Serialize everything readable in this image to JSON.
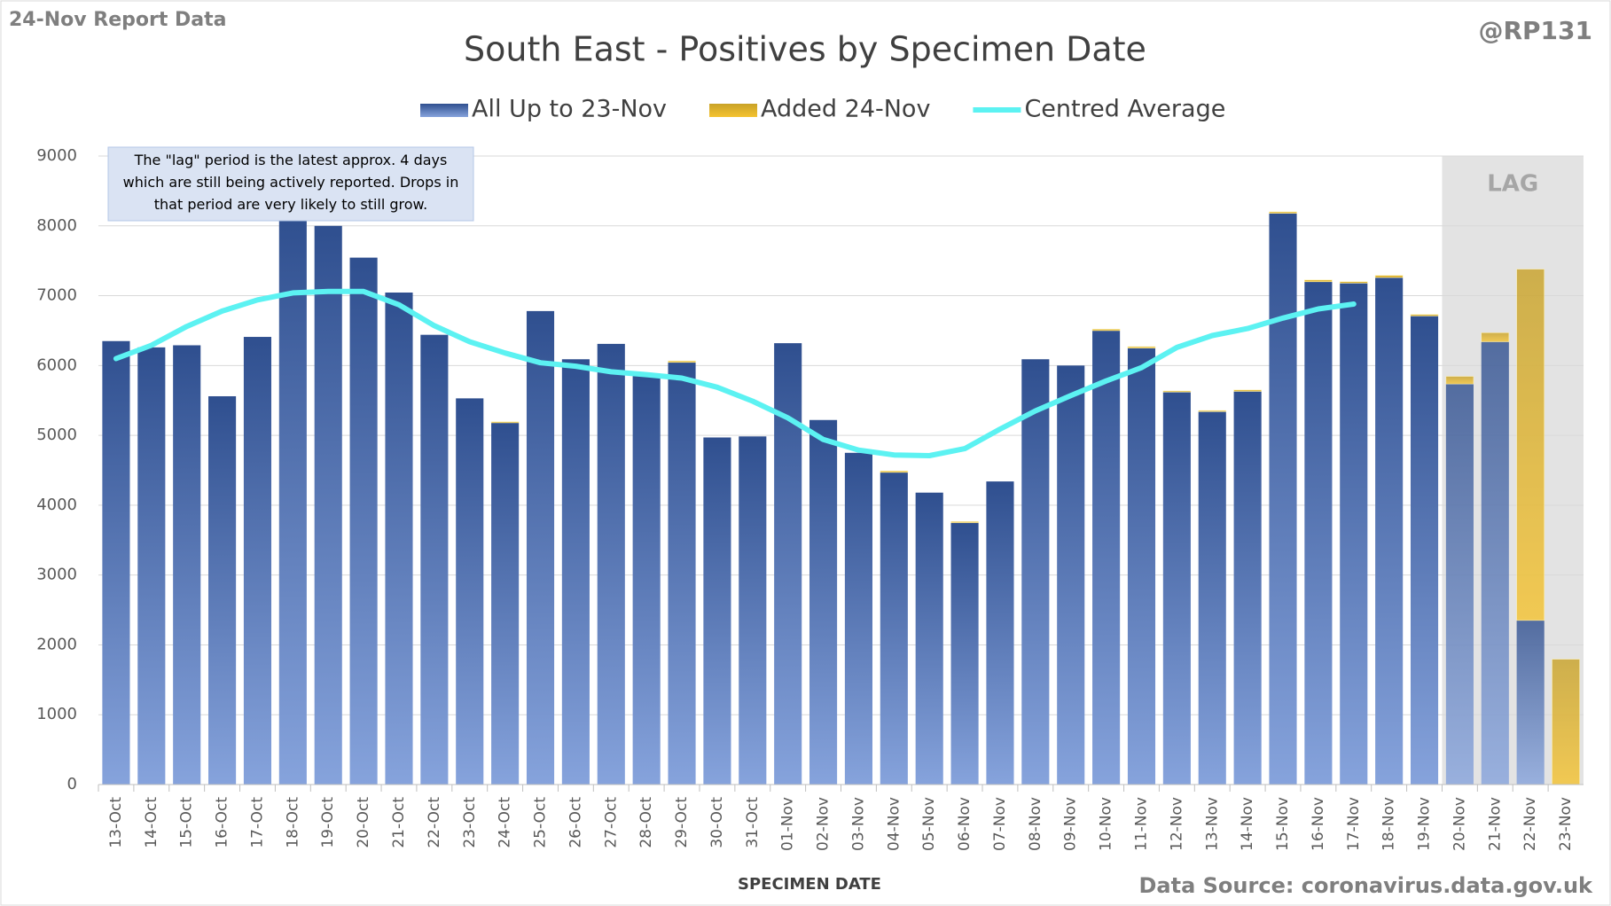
{
  "report_label": "24-Nov Report Data",
  "handle": "@RP131",
  "source": "Data Source: coronavirus.data.gov.uk",
  "chart_data": {
    "type": "bar",
    "stacked": true,
    "title": "South East - Positives by Specimen Date",
    "x_label": "SPECIMEN DATE",
    "annotation": "The \"lag\" period is the latest approx. 4 days which are still being actively reported.  Drops in that period are very likely to still grow.",
    "lag_label": "LAG",
    "categories": [
      "13-Oct",
      "14-Oct",
      "15-Oct",
      "16-Oct",
      "17-Oct",
      "18-Oct",
      "19-Oct",
      "20-Oct",
      "21-Oct",
      "22-Oct",
      "23-Oct",
      "24-Oct",
      "25-Oct",
      "26-Oct",
      "27-Oct",
      "28-Oct",
      "29-Oct",
      "30-Oct",
      "31-Oct",
      "01-Nov",
      "02-Nov",
      "03-Nov",
      "04-Nov",
      "05-Nov",
      "06-Nov",
      "07-Nov",
      "08-Nov",
      "09-Nov",
      "10-Nov",
      "11-Nov",
      "12-Nov",
      "13-Nov",
      "14-Nov",
      "15-Nov",
      "16-Nov",
      "17-Nov",
      "18-Nov",
      "19-Nov",
      "20-Nov",
      "21-Nov",
      "22-Nov",
      "23-Nov"
    ],
    "series": [
      {
        "name": "All Up to 23-Nov",
        "color": "#2f4f8f",
        "values": [
          6350,
          6260,
          6290,
          5560,
          6410,
          8150,
          8000,
          7545,
          7045,
          6440,
          5530,
          5180,
          6780,
          6090,
          6310,
          5880,
          6045,
          4970,
          4985,
          6320,
          5220,
          4750,
          4470,
          4180,
          3750,
          4340,
          6090,
          6000,
          6500,
          6250,
          5620,
          5340,
          5630,
          8180,
          7200,
          7180,
          7260,
          6710,
          5735,
          6340,
          2350,
          0
        ]
      },
      {
        "name": "Added 24-Nov",
        "color": "#c9a227",
        "values": [
          0,
          0,
          0,
          0,
          0,
          0,
          0,
          0,
          0,
          0,
          0,
          15,
          0,
          0,
          0,
          0,
          20,
          0,
          0,
          0,
          0,
          0,
          20,
          0,
          15,
          0,
          0,
          0,
          20,
          20,
          15,
          15,
          20,
          20,
          25,
          20,
          30,
          20,
          110,
          130,
          5030,
          1795
        ]
      },
      {
        "name": "Centred Average",
        "type": "line",
        "color": "#5cf2f2",
        "values": [
          6100,
          6290,
          6560,
          6780,
          6940,
          7040,
          7060,
          7060,
          6870,
          6570,
          6340,
          6180,
          6040,
          5990,
          5910,
          5870,
          5820,
          5690,
          5490,
          5250,
          4940,
          4790,
          4720,
          4710,
          4810,
          5090,
          5350,
          5570,
          5780,
          5970,
          6260,
          6430,
          6530,
          6680,
          6810,
          6880,
          null,
          null,
          null,
          null,
          null,
          null
        ]
      }
    ],
    "ylim": [
      0,
      9000
    ],
    "yticks": [
      0,
      1000,
      2000,
      3000,
      4000,
      5000,
      6000,
      7000,
      8000,
      9000
    ],
    "grid": true
  }
}
